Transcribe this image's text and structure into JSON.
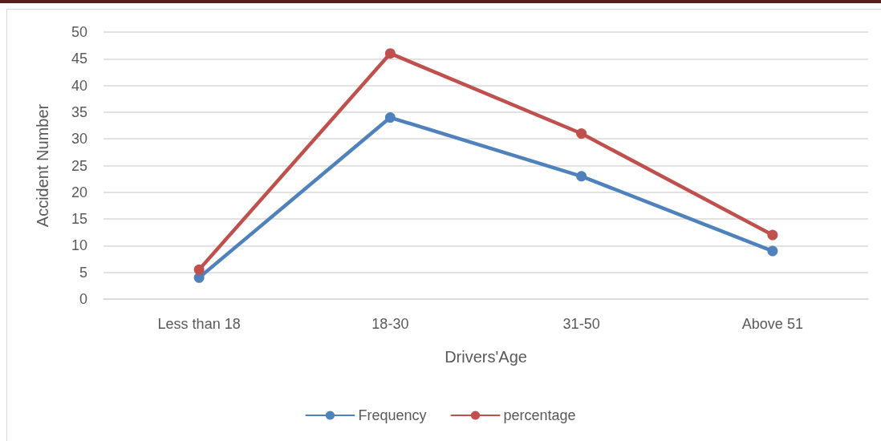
{
  "chart_data": {
    "type": "line",
    "xlabel": "Drivers'Age",
    "ylabel": "Accident Number",
    "categories": [
      "Less than 18",
      "18-30",
      "31-50",
      "Above 51"
    ],
    "series": [
      {
        "name": "Frequency",
        "color": "#4f81bd",
        "values": [
          4,
          34,
          23,
          9
        ]
      },
      {
        "name": "percentage",
        "color": "#c0504d",
        "values": [
          5.5,
          46,
          31,
          12
        ]
      }
    ],
    "ylim": [
      0,
      50
    ],
    "yticks": [
      0,
      5,
      10,
      15,
      20,
      25,
      30,
      35,
      40,
      45,
      50
    ],
    "grid": "y",
    "legend": "bottom",
    "marker": "circle",
    "line_style": "solid"
  }
}
